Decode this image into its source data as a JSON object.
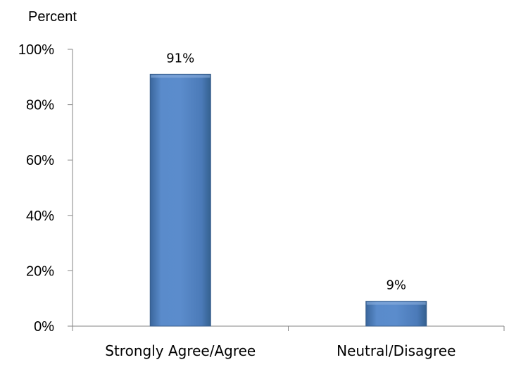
{
  "chart_data": {
    "type": "bar",
    "title": "",
    "xlabel": "",
    "ylabel": "Percent",
    "categories": [
      "Strongly Agree/Agree",
      "Neutral/Disagree"
    ],
    "values": [
      91,
      9
    ],
    "data_labels": [
      "91%",
      "9%"
    ],
    "ylim": [
      0,
      100
    ],
    "yticks": [
      0,
      20,
      40,
      60,
      80,
      100
    ],
    "ytick_labels": [
      "0%",
      "20%",
      "40%",
      "60%",
      "80%",
      "100%"
    ],
    "grid": false,
    "legend": "none",
    "bar_color": "#4F81BD",
    "bar_edge_color": "#385D8A"
  }
}
